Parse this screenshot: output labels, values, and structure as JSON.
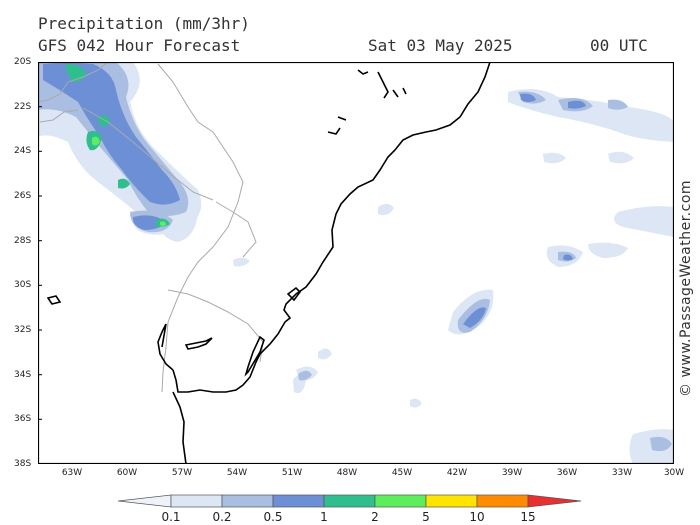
{
  "header": {
    "title": "Precipitation (mm/3hr)",
    "model": "GFS 042 Hour Forecast",
    "date": "Sat 03 May 2025",
    "time": "00 UTC"
  },
  "credit": "© www.PassageWeather.com",
  "axes": {
    "lat_labels": [
      "20S",
      "22S",
      "24S",
      "26S",
      "28S",
      "30S",
      "32S",
      "34S",
      "36S",
      "38S"
    ],
    "lon_labels": [
      "63W",
      "60W",
      "57W",
      "54W",
      "51W",
      "48W",
      "45W",
      "42W",
      "39W",
      "36W",
      "33W",
      "30W"
    ]
  },
  "legend": {
    "labels": [
      "0.1",
      "0.2",
      "0.5",
      "1",
      "2",
      "5",
      "10",
      "15"
    ],
    "colors": [
      "#eef2fa",
      "#dde6f5",
      "#a9bee0",
      "#6d8fd6",
      "#2fbf8f",
      "#5dee5d",
      "#ffe400",
      "#ff8c00",
      "#e83030"
    ]
  }
}
